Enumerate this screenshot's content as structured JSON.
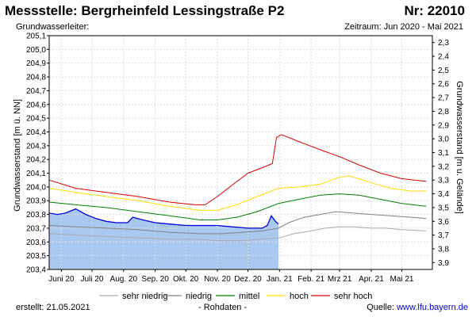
{
  "header": {
    "title": "Messstelle: Bergrheinfeld Lessingstraße P2",
    "number": "Nr: 22010",
    "subtitle": "Grundwasserleiter:",
    "period": "Zeitraum: Jun 2020 - Mai 2021"
  },
  "footer": {
    "created": "erstellt:  21.05.2021",
    "raw": "- Rohdaten -",
    "source_label": "Quelle: ",
    "source_link": "www.lfu.bayern.de"
  },
  "colors": {
    "raw_fill": "#a9c8f0",
    "raw_line": "#0000dd",
    "sehr_niedrig": "#aaaaaa",
    "niedrig": "#808080",
    "mittel": "#008000",
    "hoch": "#ffdd00",
    "sehr_hoch": "#dd0000"
  },
  "chart_data": {
    "type": "line",
    "ylabel": "Grundwasserstand [m ü. NN]",
    "ylabel_right": "Grundwasserstand [m u. Gelände]",
    "ylim": [
      203.4,
      205.1
    ],
    "yticks": [
      "203,4",
      "203,5",
      "203,6",
      "203,7",
      "203,8",
      "203,9",
      "204,0",
      "204,1",
      "204,2",
      "204,3",
      "204,4",
      "204,5",
      "204,6",
      "204,7",
      "204,8",
      "204,9",
      "205,0",
      "205,1"
    ],
    "yticks_right": [
      "2,3",
      "2,4",
      "2,5",
      "2,6",
      "2,7",
      "2,8",
      "2,9",
      "3,0",
      "3,1",
      "3,2",
      "3,3",
      "3,4",
      "3,5",
      "3,6",
      "3,7",
      "3,8",
      "3,9"
    ],
    "right_axis_offset": 207.35,
    "x_start": "2020-06-01",
    "x_months": [
      "Juni 20",
      "Juli 20",
      "Aug. 20",
      "Sep. 20",
      "Okt. 20",
      "Nov. 20",
      "Dez. 20",
      "Jan. 21",
      "Feb. 21",
      "Mrz 21",
      "Apr. 21",
      "Mai 21"
    ],
    "grid": true,
    "legend_position": "bottom",
    "series": [
      {
        "name": "sehr niedrig",
        "key": "sehr_niedrig",
        "x": [
          "2020-05-20",
          "2020-06-15",
          "2020-07-15",
          "2020-08-15",
          "2020-09-15",
          "2020-10-10",
          "2020-11-01",
          "2020-11-25",
          "2020-12-15",
          "2021-01-01",
          "2021-01-15",
          "2021-02-01",
          "2021-02-15",
          "2021-03-01",
          "2021-03-15",
          "2021-04-01",
          "2021-04-15",
          "2021-05-01",
          "2021-05-25"
        ],
        "y": [
          203.66,
          203.65,
          203.64,
          203.63,
          203.62,
          203.62,
          203.61,
          203.61,
          203.62,
          203.63,
          203.66,
          203.68,
          203.7,
          203.71,
          203.71,
          203.7,
          203.7,
          203.69,
          203.68
        ]
      },
      {
        "name": "niedrig",
        "key": "niedrig",
        "x": [
          "2020-05-20",
          "2020-06-15",
          "2020-07-15",
          "2020-08-15",
          "2020-09-15",
          "2020-10-15",
          "2020-11-05",
          "2020-11-25",
          "2020-12-15",
          "2020-12-31",
          "2021-01-10",
          "2021-01-25",
          "2021-02-10",
          "2021-02-25",
          "2021-03-15",
          "2021-04-01",
          "2021-04-20",
          "2021-05-10",
          "2021-05-25"
        ],
        "y": [
          203.72,
          203.71,
          203.7,
          203.69,
          203.67,
          203.66,
          203.66,
          203.67,
          203.68,
          203.7,
          203.74,
          203.78,
          203.8,
          203.82,
          203.81,
          203.8,
          203.79,
          203.78,
          203.77
        ]
      },
      {
        "name": "mittel",
        "key": "mittel",
        "x": [
          "2020-05-20",
          "2020-06-15",
          "2020-07-15",
          "2020-08-15",
          "2020-09-15",
          "2020-10-15",
          "2020-11-01",
          "2020-11-20",
          "2020-12-10",
          "2020-12-31",
          "2021-01-20",
          "2021-02-10",
          "2021-03-01",
          "2021-03-20",
          "2021-04-10",
          "2021-05-01",
          "2021-05-25"
        ],
        "y": [
          203.89,
          203.87,
          203.85,
          203.82,
          203.79,
          203.76,
          203.76,
          203.78,
          203.82,
          203.88,
          203.91,
          203.94,
          203.95,
          203.94,
          203.91,
          203.88,
          203.86
        ]
      },
      {
        "name": "hoch",
        "key": "hoch",
        "x": [
          "2020-05-20",
          "2020-06-15",
          "2020-07-15",
          "2020-08-15",
          "2020-09-15",
          "2020-10-15",
          "2020-11-01",
          "2020-11-20",
          "2020-12-10",
          "2020-12-31",
          "2021-01-20",
          "2021-02-10",
          "2021-03-01",
          "2021-03-10",
          "2021-03-20",
          "2021-04-01",
          "2021-04-20",
          "2021-05-10",
          "2021-05-25"
        ],
        "y": [
          203.99,
          203.96,
          203.93,
          203.9,
          203.86,
          203.83,
          203.83,
          203.87,
          203.93,
          203.99,
          204.0,
          204.02,
          204.07,
          204.08,
          204.06,
          204.03,
          203.99,
          203.97,
          203.97
        ]
      },
      {
        "name": "sehr hoch",
        "key": "sehr_hoch",
        "x": [
          "2020-05-20",
          "2020-06-15",
          "2020-07-15",
          "2020-08-15",
          "2020-09-15",
          "2020-10-10",
          "2020-10-20",
          "2020-11-01",
          "2020-11-15",
          "2020-12-01",
          "2020-12-15",
          "2020-12-25",
          "2020-12-29",
          "2021-01-03",
          "2021-01-20",
          "2021-02-10",
          "2021-03-01",
          "2021-03-20",
          "2021-04-10",
          "2021-05-01",
          "2021-05-25"
        ],
        "y": [
          204.05,
          203.99,
          203.96,
          203.93,
          203.89,
          203.87,
          203.87,
          203.93,
          204.01,
          204.1,
          204.14,
          204.17,
          204.36,
          204.38,
          204.33,
          204.27,
          204.22,
          204.16,
          204.1,
          204.06,
          204.04
        ]
      },
      {
        "name": "Rohdaten",
        "key": "raw",
        "x": [
          "2020-05-20",
          "2020-05-28",
          "2020-06-05",
          "2020-06-15",
          "2020-06-25",
          "2020-07-05",
          "2020-07-15",
          "2020-07-25",
          "2020-08-05",
          "2020-08-10",
          "2020-08-20",
          "2020-09-01",
          "2020-09-15",
          "2020-10-01",
          "2020-10-15",
          "2020-11-01",
          "2020-11-15",
          "2020-12-01",
          "2020-12-15",
          "2020-12-20",
          "2020-12-24",
          "2020-12-28",
          "2020-12-31"
        ],
        "y": [
          203.81,
          203.8,
          203.81,
          203.84,
          203.8,
          203.77,
          203.75,
          203.74,
          203.74,
          203.78,
          203.76,
          203.74,
          203.73,
          203.72,
          203.72,
          203.72,
          203.71,
          203.7,
          203.7,
          203.72,
          203.79,
          203.75,
          203.73
        ]
      }
    ]
  }
}
